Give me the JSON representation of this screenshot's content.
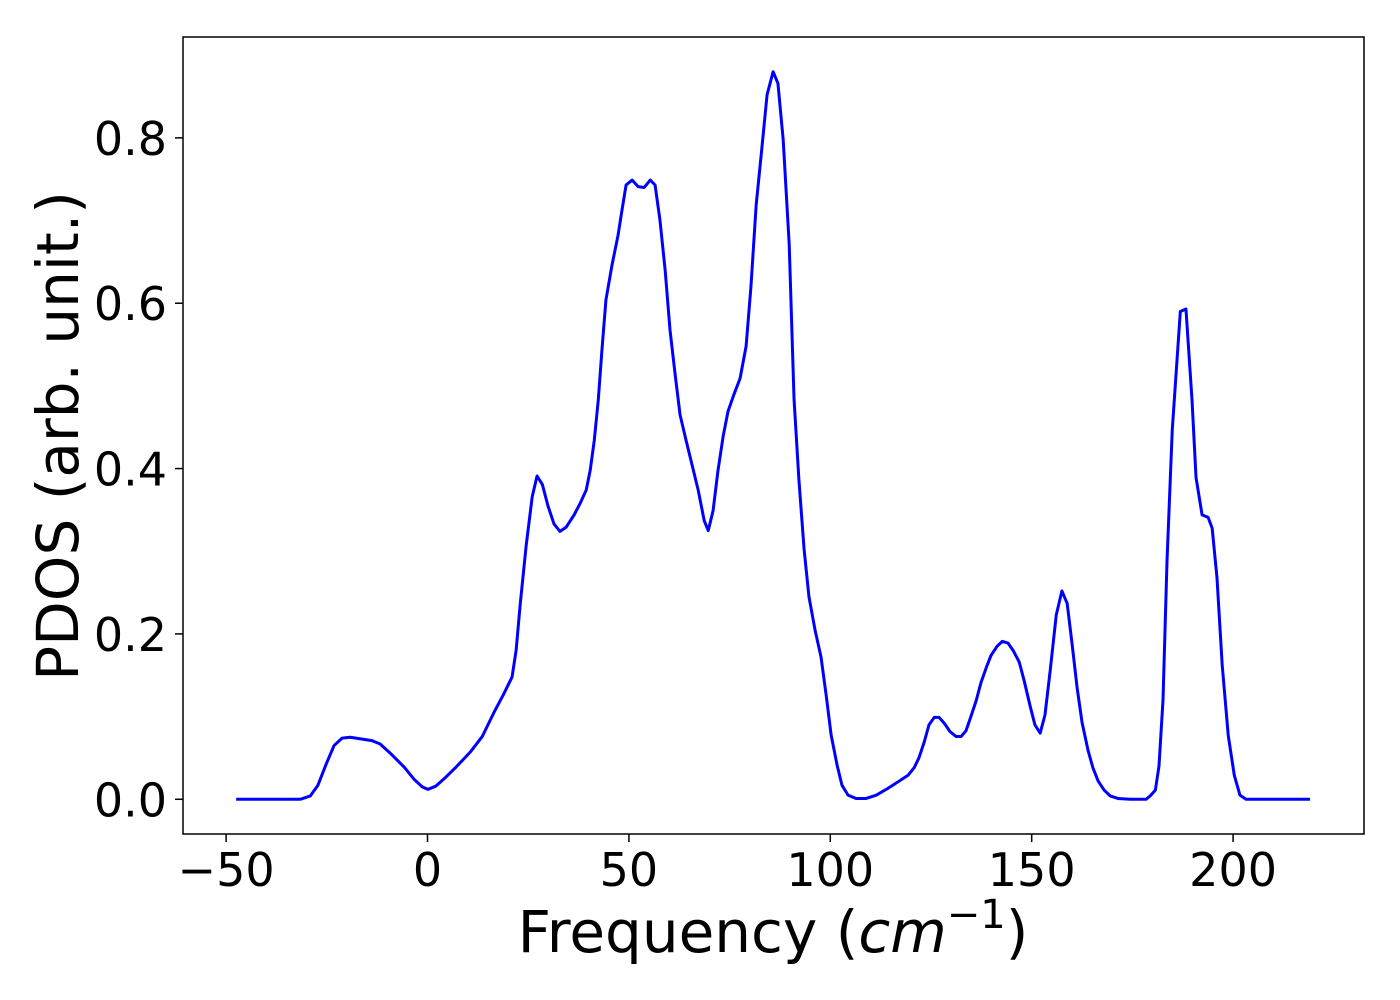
{
  "chart_data": {
    "type": "line",
    "xlabel": [
      "Frequency (",
      "cm",
      "−1",
      ")"
    ],
    "ylabel": "PDOS (arb. unit.)",
    "color": "#0000ff",
    "x": [
      -47.5,
      -31.6,
      -29.1,
      -27.2,
      -25.2,
      -23.2,
      -21.2,
      -19.2,
      -13.8,
      -11.8,
      -9.3,
      -5.8,
      -3.3,
      -1.3,
      0.1,
      2.1,
      4.6,
      7.1,
      10.6,
      13.6,
      16.5,
      19.0,
      21.0,
      22.0,
      23.0,
      24.5,
      26.0,
      27.2,
      28.5,
      29.9,
      31.4,
      32.9,
      34.4,
      36.4,
      37.9,
      39.4,
      40.4,
      41.4,
      42.4,
      43.3,
      44.3,
      45.8,
      47.3,
      48.3,
      49.3,
      50.8,
      52.3,
      53.8,
      55.3,
      56.5,
      57.7,
      59.0,
      60.2,
      61.5,
      62.7,
      64.2,
      65.7,
      67.2,
      68.7,
      69.7,
      70.9,
      72.1,
      73.4,
      74.6,
      76.1,
      77.6,
      79.1,
      80.3,
      81.6,
      83.1,
      84.3,
      85.8,
      87.0,
      88.3,
      89.8,
      91.0,
      92.2,
      93.5,
      94.7,
      96.2,
      97.7,
      99.0,
      100.2,
      101.7,
      102.9,
      104.4,
      106.4,
      108.9,
      111.4,
      113.9,
      116.8,
      119.3,
      120.8,
      122.0,
      123.3,
      124.5,
      125.8,
      127.0,
      128.3,
      129.7,
      131.2,
      132.5,
      133.7,
      134.9,
      136.2,
      137.4,
      138.7,
      139.9,
      141.4,
      142.7,
      144.1,
      145.4,
      146.9,
      148.1,
      149.6,
      150.8,
      152.1,
      153.3,
      154.6,
      156.1,
      157.5,
      158.8,
      160.0,
      161.3,
      162.5,
      164.0,
      165.2,
      166.5,
      168.0,
      169.5,
      171.4,
      174.4,
      178.4,
      179.4,
      180.7,
      181.6,
      182.6,
      183.6,
      184.9,
      186.9,
      188.3,
      189.8,
      190.8,
      192.3,
      193.8,
      194.8,
      196.0,
      197.3,
      198.8,
      200.3,
      201.7,
      203.2,
      219.1
    ],
    "values": [
      0,
      0,
      0.004,
      0.017,
      0.042,
      0.065,
      0.074,
      0.075,
      0.071,
      0.067,
      0.056,
      0.039,
      0.024,
      0.015,
      0.012,
      0.016,
      0.027,
      0.039,
      0.057,
      0.076,
      0.105,
      0.128,
      0.148,
      0.18,
      0.235,
      0.307,
      0.366,
      0.391,
      0.381,
      0.355,
      0.333,
      0.324,
      0.329,
      0.344,
      0.358,
      0.374,
      0.398,
      0.434,
      0.483,
      0.543,
      0.604,
      0.646,
      0.682,
      0.713,
      0.743,
      0.749,
      0.741,
      0.74,
      0.749,
      0.743,
      0.701,
      0.64,
      0.568,
      0.513,
      0.465,
      0.434,
      0.404,
      0.374,
      0.337,
      0.325,
      0.349,
      0.397,
      0.439,
      0.469,
      0.49,
      0.509,
      0.548,
      0.62,
      0.719,
      0.792,
      0.852,
      0.88,
      0.866,
      0.798,
      0.671,
      0.484,
      0.387,
      0.302,
      0.245,
      0.205,
      0.172,
      0.125,
      0.078,
      0.041,
      0.017,
      0.005,
      0.001,
      0.001,
      0.005,
      0.012,
      0.021,
      0.029,
      0.038,
      0.05,
      0.069,
      0.09,
      0.099,
      0.099,
      0.092,
      0.082,
      0.076,
      0.076,
      0.083,
      0.1,
      0.119,
      0.141,
      0.159,
      0.174,
      0.185,
      0.191,
      0.189,
      0.18,
      0.166,
      0.144,
      0.113,
      0.09,
      0.08,
      0.102,
      0.156,
      0.223,
      0.252,
      0.237,
      0.189,
      0.134,
      0.093,
      0.059,
      0.038,
      0.022,
      0.011,
      0.004,
      0.001,
      0,
      0,
      0.004,
      0.011,
      0.04,
      0.12,
      0.289,
      0.447,
      0.59,
      0.593,
      0.483,
      0.389,
      0.344,
      0.341,
      0.328,
      0.268,
      0.162,
      0.077,
      0.029,
      0.005,
      0,
      0
    ],
    "xlim": [
      -60.7,
      232.5
    ],
    "ylim": [
      -0.042,
      0.922
    ],
    "xticks": [
      {
        "value": -50,
        "label": "−50"
      },
      0,
      50,
      100,
      150,
      200
    ],
    "yticks": [
      {
        "value": 0,
        "label": "0.0"
      },
      0.2,
      0.4,
      0.6,
      0.8
    ]
  }
}
